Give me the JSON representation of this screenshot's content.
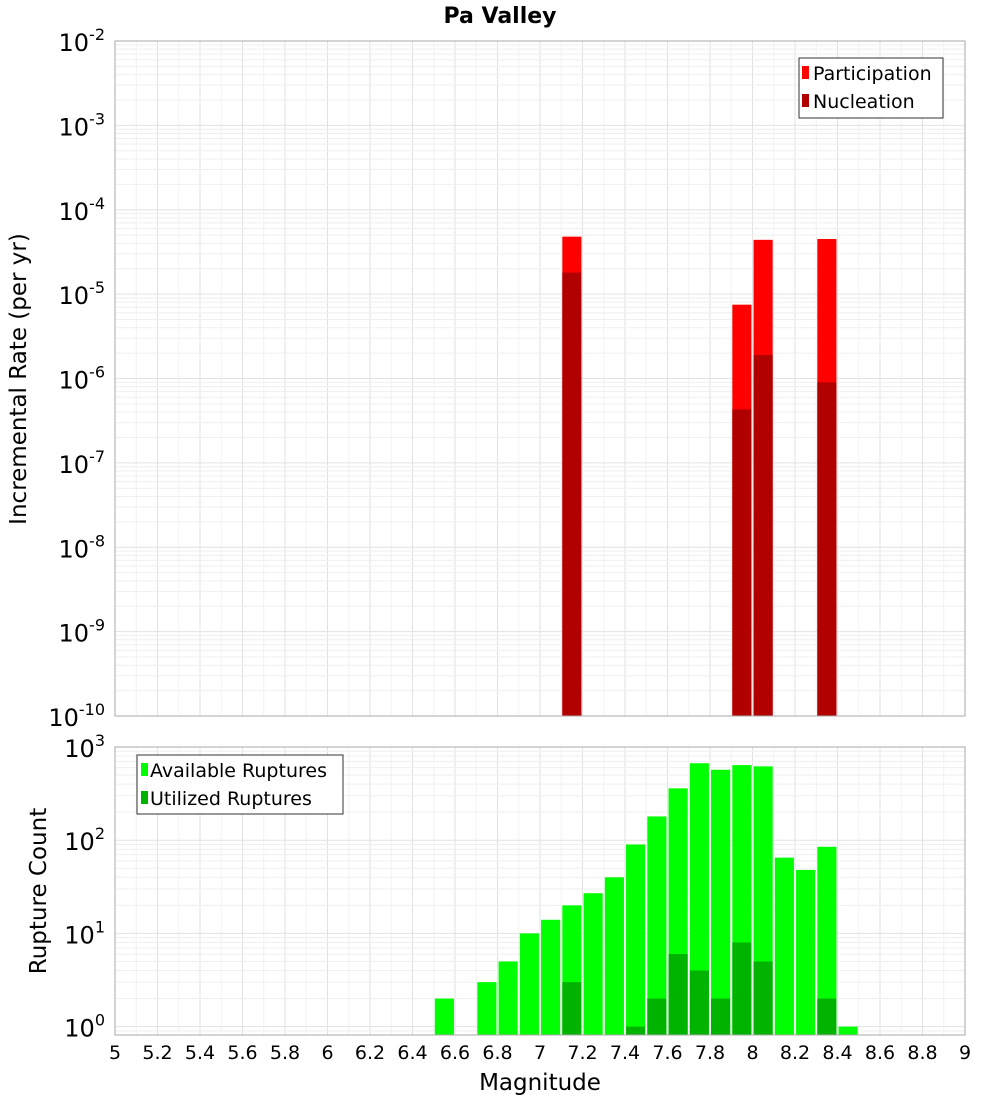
{
  "title": "Pa Valley",
  "colors": {
    "participation": "#ff0000",
    "nucleation": "#b00000",
    "available": "#00ff00",
    "utilized": "#00b300",
    "grid": "#e6e6e6",
    "axis": "#aaaaaa"
  },
  "chart_data": [
    {
      "type": "bar",
      "title": "Pa Valley",
      "ylabel": "Incremental Rate (per yr)",
      "xlabel": "",
      "yscale": "log",
      "ylim_exp": [
        -10,
        -2
      ],
      "xlim": [
        5,
        9
      ],
      "bin_width": 0.1,
      "y_ticks": [
        {
          "base": "10",
          "exp": "-10"
        },
        {
          "base": "10",
          "exp": "-9"
        },
        {
          "base": "10",
          "exp": "-8"
        },
        {
          "base": "10",
          "exp": "-7"
        },
        {
          "base": "10",
          "exp": "-6"
        },
        {
          "base": "10",
          "exp": "-5"
        },
        {
          "base": "10",
          "exp": "-4"
        },
        {
          "base": "10",
          "exp": "-3"
        },
        {
          "base": "10",
          "exp": "-2"
        }
      ],
      "legend": [
        "Participation",
        "Nucleation"
      ],
      "legend_position": "top-right",
      "series": [
        {
          "name": "Participation",
          "x": [
            7.15,
            7.95,
            8.05,
            8.35
          ],
          "values": [
            4.8e-05,
            7.5e-06,
            4.4e-05,
            4.5e-05
          ]
        },
        {
          "name": "Nucleation",
          "x": [
            7.15,
            7.95,
            8.05,
            8.35
          ],
          "values": [
            1.8e-05,
            4.3e-07,
            1.9e-06,
            9e-07
          ]
        }
      ]
    },
    {
      "type": "bar",
      "title": "",
      "ylabel": "Rupture Count",
      "xlabel": "Magnitude",
      "yscale": "log",
      "ylim_exp": [
        -0.09,
        3
      ],
      "xlim": [
        5,
        9
      ],
      "bin_width": 0.1,
      "x_ticks": [
        "5",
        "5.2",
        "5.4",
        "5.6",
        "5.8",
        "6",
        "6.2",
        "6.4",
        "6.6",
        "6.8",
        "7",
        "7.2",
        "7.4",
        "7.6",
        "7.8",
        "8",
        "8.2",
        "8.4",
        "8.6",
        "8.8",
        "9"
      ],
      "y_ticks": [
        {
          "base": "10",
          "exp": "0"
        },
        {
          "base": "10",
          "exp": "1"
        },
        {
          "base": "10",
          "exp": "2"
        },
        {
          "base": "10",
          "exp": "3"
        }
      ],
      "legend": [
        "Available Ruptures",
        "Utilized Ruptures"
      ],
      "legend_position": "top-left",
      "series": [
        {
          "name": "Available Ruptures",
          "x": [
            6.55,
            6.75,
            6.85,
            6.95,
            7.05,
            7.15,
            7.25,
            7.35,
            7.45,
            7.55,
            7.65,
            7.75,
            7.85,
            7.95,
            8.05,
            8.15,
            8.25,
            8.35,
            8.45
          ],
          "values": [
            2,
            3,
            5,
            10,
            14,
            20,
            27,
            40,
            90,
            180,
            360,
            670,
            570,
            640,
            620,
            65,
            48,
            85,
            1
          ]
        },
        {
          "name": "Utilized Ruptures",
          "x": [
            7.15,
            7.45,
            7.55,
            7.65,
            7.75,
            7.85,
            7.95,
            8.05,
            8.35
          ],
          "values": [
            3,
            1,
            2,
            6,
            4,
            2,
            8,
            5,
            2
          ]
        }
      ]
    }
  ]
}
